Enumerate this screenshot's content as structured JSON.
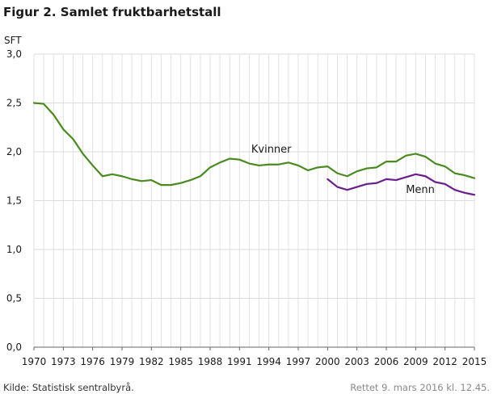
{
  "title": "Figur 2. Samlet fruktbarhetstall",
  "footer": {
    "source": "Kilde: Statistisk sentralbyrå.",
    "updated": "Rettet 9. mars 2016 kl. 12.45."
  },
  "chart_data": {
    "type": "line",
    "ylabel": "SFT",
    "ylim": [
      0,
      3
    ],
    "xlim": [
      1970,
      2015
    ],
    "yticks": [
      "0,0",
      "0,5",
      "1,0",
      "1,5",
      "2,0",
      "2,5",
      "3,0"
    ],
    "ytick_values": [
      0,
      0.5,
      1,
      1.5,
      2,
      2.5,
      3
    ],
    "xticks": [
      "1970",
      "1973",
      "1976",
      "1979",
      "1982",
      "1985",
      "1988",
      "1991",
      "1994",
      "1997",
      "2000",
      "2003",
      "2006",
      "2009",
      "2012",
      "2015"
    ],
    "xtick_values": [
      1970,
      1973,
      1976,
      1979,
      1982,
      1985,
      1988,
      1991,
      1994,
      1997,
      2000,
      2003,
      2006,
      2009,
      2012,
      2015
    ],
    "grid": true,
    "series": [
      {
        "name": "Kvinner",
        "color": "#4a8a1f",
        "x": [
          1970,
          1971,
          1972,
          1973,
          1974,
          1975,
          1976,
          1977,
          1978,
          1979,
          1980,
          1981,
          1982,
          1983,
          1984,
          1985,
          1986,
          1987,
          1988,
          1989,
          1990,
          1991,
          1992,
          1993,
          1994,
          1995,
          1996,
          1997,
          1998,
          1999,
          2000,
          2001,
          2002,
          2003,
          2004,
          2005,
          2006,
          2007,
          2008,
          2009,
          2010,
          2011,
          2012,
          2013,
          2014,
          2015
        ],
        "values": [
          2.5,
          2.49,
          2.38,
          2.23,
          2.13,
          1.98,
          1.86,
          1.75,
          1.77,
          1.75,
          1.72,
          1.7,
          1.71,
          1.66,
          1.66,
          1.68,
          1.71,
          1.75,
          1.84,
          1.89,
          1.93,
          1.92,
          1.88,
          1.86,
          1.87,
          1.87,
          1.89,
          1.86,
          1.81,
          1.84,
          1.85,
          1.78,
          1.75,
          1.8,
          1.83,
          1.84,
          1.9,
          1.9,
          1.96,
          1.98,
          1.95,
          1.88,
          1.85,
          1.78,
          1.76,
          1.73
        ]
      },
      {
        "name": "Menn",
        "color": "#6b1f8c",
        "x": [
          2000,
          2001,
          2002,
          2003,
          2004,
          2005,
          2006,
          2007,
          2008,
          2009,
          2010,
          2011,
          2012,
          2013,
          2014,
          2015
        ],
        "values": [
          1.72,
          1.64,
          1.61,
          1.64,
          1.67,
          1.68,
          1.72,
          1.71,
          1.74,
          1.77,
          1.75,
          1.69,
          1.67,
          1.61,
          1.58,
          1.56
        ]
      }
    ],
    "labels": [
      {
        "series": "Kvinner",
        "text": "Kvinner",
        "x": 1992.2,
        "y": 1.99
      },
      {
        "series": "Menn",
        "text": "Menn",
        "x": 2008.0,
        "y": 1.58
      }
    ]
  }
}
